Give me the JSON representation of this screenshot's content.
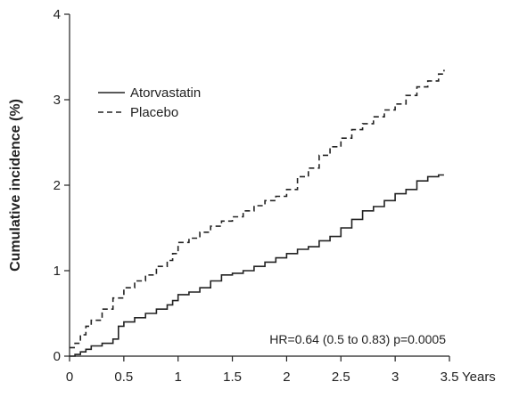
{
  "chart_data": {
    "type": "line",
    "title": "",
    "xlabel": "Years",
    "ylabel": "Cumulative incidence (%)",
    "xlim": [
      0,
      3.5
    ],
    "ylim": [
      0,
      4
    ],
    "x_ticks": [
      0,
      0.5,
      1,
      1.5,
      2,
      2.5,
      3,
      3.5
    ],
    "x_tick_labels": [
      "0",
      "0.5",
      "1",
      "1.5",
      "2",
      "2.5",
      "3",
      "3.5"
    ],
    "y_ticks": [
      0,
      1,
      2,
      3,
      4
    ],
    "y_tick_labels": [
      "0",
      "1",
      "2",
      "3",
      "4"
    ],
    "grid": false,
    "legend_position": "top-left",
    "annotation": "HR=0.64 (0.5 to 0.83) p=0.0005",
    "series": [
      {
        "name": "Atorvastatin",
        "line_style": "solid",
        "color": "#222222",
        "points": [
          [
            0,
            0
          ],
          [
            0.05,
            0.02
          ],
          [
            0.1,
            0.05
          ],
          [
            0.15,
            0.08
          ],
          [
            0.2,
            0.12
          ],
          [
            0.3,
            0.15
          ],
          [
            0.4,
            0.2
          ],
          [
            0.45,
            0.35
          ],
          [
            0.5,
            0.4
          ],
          [
            0.6,
            0.45
          ],
          [
            0.7,
            0.5
          ],
          [
            0.8,
            0.55
          ],
          [
            0.9,
            0.6
          ],
          [
            0.95,
            0.65
          ],
          [
            1.0,
            0.72
          ],
          [
            1.1,
            0.75
          ],
          [
            1.2,
            0.8
          ],
          [
            1.3,
            0.88
          ],
          [
            1.4,
            0.95
          ],
          [
            1.5,
            0.97
          ],
          [
            1.6,
            1.0
          ],
          [
            1.7,
            1.05
          ],
          [
            1.8,
            1.1
          ],
          [
            1.9,
            1.15
          ],
          [
            2.0,
            1.2
          ],
          [
            2.1,
            1.25
          ],
          [
            2.2,
            1.28
          ],
          [
            2.3,
            1.35
          ],
          [
            2.4,
            1.4
          ],
          [
            2.5,
            1.5
          ],
          [
            2.6,
            1.6
          ],
          [
            2.7,
            1.7
          ],
          [
            2.8,
            1.75
          ],
          [
            2.9,
            1.82
          ],
          [
            3.0,
            1.9
          ],
          [
            3.1,
            1.95
          ],
          [
            3.2,
            2.05
          ],
          [
            3.3,
            2.1
          ],
          [
            3.4,
            2.12
          ],
          [
            3.45,
            2.12
          ]
        ]
      },
      {
        "name": "Placebo",
        "line_style": "dashed",
        "color": "#222222",
        "points": [
          [
            0,
            0.1
          ],
          [
            0.05,
            0.15
          ],
          [
            0.1,
            0.25
          ],
          [
            0.15,
            0.35
          ],
          [
            0.2,
            0.42
          ],
          [
            0.3,
            0.55
          ],
          [
            0.4,
            0.68
          ],
          [
            0.5,
            0.8
          ],
          [
            0.6,
            0.88
          ],
          [
            0.7,
            0.95
          ],
          [
            0.8,
            1.05
          ],
          [
            0.9,
            1.12
          ],
          [
            0.95,
            1.2
          ],
          [
            1.0,
            1.33
          ],
          [
            1.1,
            1.38
          ],
          [
            1.2,
            1.45
          ],
          [
            1.3,
            1.52
          ],
          [
            1.4,
            1.58
          ],
          [
            1.5,
            1.63
          ],
          [
            1.6,
            1.7
          ],
          [
            1.7,
            1.76
          ],
          [
            1.8,
            1.82
          ],
          [
            1.9,
            1.87
          ],
          [
            2.0,
            1.95
          ],
          [
            2.1,
            2.1
          ],
          [
            2.2,
            2.2
          ],
          [
            2.3,
            2.35
          ],
          [
            2.4,
            2.45
          ],
          [
            2.5,
            2.55
          ],
          [
            2.6,
            2.65
          ],
          [
            2.7,
            2.72
          ],
          [
            2.8,
            2.8
          ],
          [
            2.9,
            2.88
          ],
          [
            3.0,
            2.95
          ],
          [
            3.1,
            3.05
          ],
          [
            3.2,
            3.15
          ],
          [
            3.3,
            3.22
          ],
          [
            3.4,
            3.3
          ],
          [
            3.45,
            3.35
          ]
        ]
      }
    ]
  }
}
